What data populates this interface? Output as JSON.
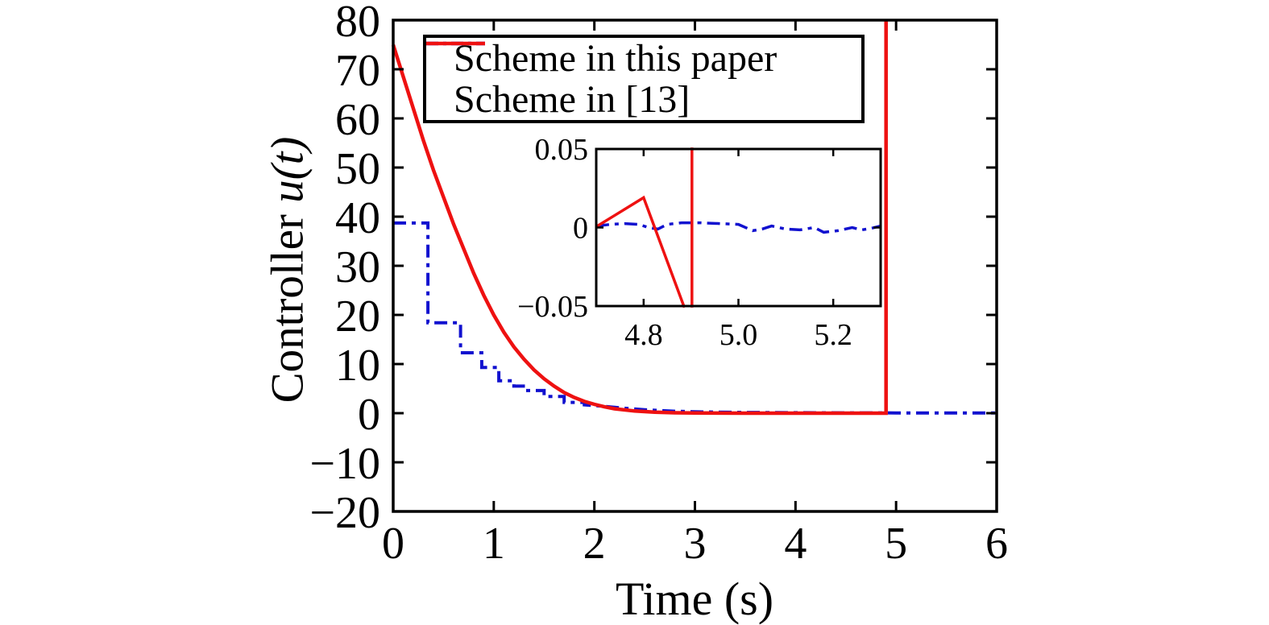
{
  "figure": {
    "background": "#ffffff",
    "axes_color": "#000000"
  },
  "chart_data": {
    "type": "line",
    "title": "",
    "xlabel": "Time (s)",
    "ylabel": "Controller u(t)",
    "ylabel_prefix": "Controller ",
    "ylabel_math": "u(t)",
    "xlim": [
      0,
      6
    ],
    "ylim": [
      -20,
      80
    ],
    "grid": false,
    "legend_position": "top-left-inside",
    "xticks": {
      "values": [
        0,
        1,
        2,
        3,
        4,
        5,
        6
      ],
      "labels": [
        "0",
        "1",
        "2",
        "3",
        "4",
        "5",
        "6"
      ]
    },
    "yticks": {
      "values": [
        -20,
        -10,
        0,
        10,
        20,
        30,
        40,
        50,
        60,
        70,
        80
      ],
      "labels": [
        "−20",
        "−10",
        "0",
        "10",
        "20",
        "30",
        "40",
        "50",
        "60",
        "70",
        "80"
      ]
    },
    "series": [
      {
        "name": "Scheme in this paper",
        "color": "#1111cf",
        "style": "dashdot",
        "width": 4,
        "segments": [
          [
            [
              0,
              38.7
            ],
            [
              0.345,
              38.7
            ],
            [
              0.345,
              18.4
            ],
            [
              0.67,
              18.4
            ],
            [
              0.67,
              12.3
            ],
            [
              0.88,
              12.3
            ],
            [
              0.88,
              9.3
            ],
            [
              1.05,
              9.3
            ],
            [
              1.05,
              6.6
            ],
            [
              1.2,
              6.6
            ],
            [
              1.2,
              5.5
            ],
            [
              1.32,
              5.5
            ],
            [
              1.32,
              4.6
            ],
            [
              1.5,
              4.6
            ],
            [
              1.5,
              3.4
            ],
            [
              1.7,
              3.4
            ],
            [
              1.7,
              2.2
            ],
            [
              1.9,
              2.2
            ],
            [
              1.9,
              1.7
            ],
            [
              2.1,
              1.4
            ],
            [
              2.3,
              1.0
            ],
            [
              2.5,
              0.7
            ],
            [
              2.8,
              0.4
            ],
            [
              3.1,
              0.25
            ],
            [
              3.5,
              0.15
            ],
            [
              4.0,
              0.1
            ],
            [
              4.5,
              0.07
            ],
            [
              5.0,
              0.05
            ],
            [
              5.5,
              0.05
            ],
            [
              6.0,
              0.05
            ]
          ]
        ]
      },
      {
        "name": "Scheme in [13]",
        "color": "#ee1111",
        "style": "solid",
        "width": 4.5,
        "segments": [
          [
            [
              0,
              75
            ],
            [
              0.1,
              68.5
            ],
            [
              0.2,
              62
            ],
            [
              0.3,
              55.5
            ],
            [
              0.4,
              49.5
            ],
            [
              0.5,
              44
            ],
            [
              0.6,
              38.5
            ],
            [
              0.7,
              33.5
            ],
            [
              0.8,
              28.5
            ],
            [
              0.9,
              24
            ],
            [
              1.0,
              20
            ],
            [
              1.1,
              16.5
            ],
            [
              1.2,
              13.5
            ],
            [
              1.3,
              11
            ],
            [
              1.4,
              8.8
            ],
            [
              1.5,
              7.0
            ],
            [
              1.6,
              5.5
            ],
            [
              1.7,
              4.2
            ],
            [
              1.8,
              3.2
            ],
            [
              1.9,
              2.4
            ],
            [
              2.0,
              1.8
            ],
            [
              2.1,
              1.3
            ],
            [
              2.2,
              0.9
            ],
            [
              2.4,
              0.45
            ],
            [
              2.6,
              0.2
            ],
            [
              2.8,
              0.08
            ],
            [
              3.0,
              0.03
            ],
            [
              3.5,
              0
            ],
            [
              4.0,
              0
            ],
            [
              4.5,
              0
            ],
            [
              4.88,
              0
            ],
            [
              4.9,
              0
            ],
            [
              4.9,
              80
            ]
          ]
        ]
      }
    ],
    "inset": {
      "xlim": [
        4.7,
        5.3
      ],
      "ylim": [
        -0.05,
        0.05
      ],
      "xticks": {
        "values": [
          4.8,
          5.0,
          5.2
        ],
        "labels": [
          "4.8",
          "5.0",
          "5.2"
        ]
      },
      "yticks": {
        "values": [
          -0.05,
          0,
          0.05
        ],
        "labels": [
          "−0.05",
          "0",
          "0.05"
        ]
      },
      "series": [
        {
          "name": "Scheme in this paper",
          "color": "#1111cf",
          "style": "dashdot",
          "width": 3.5,
          "segments": [
            [
              [
                4.7,
                0.001
              ],
              [
                4.73,
                0.002
              ],
              [
                4.76,
                0.0025
              ],
              [
                4.79,
                0.002
              ],
              [
                4.81,
                0.0
              ],
              [
                4.83,
                -0.001
              ],
              [
                4.85,
                0.002
              ],
              [
                4.88,
                0.003
              ],
              [
                4.92,
                0.003
              ],
              [
                4.96,
                0.0025
              ],
              [
                5.0,
                0.002
              ],
              [
                5.03,
                -0.002
              ],
              [
                5.05,
                -0.001
              ],
              [
                5.07,
                0.001
              ],
              [
                5.1,
                -0.001
              ],
              [
                5.13,
                -0.0015
              ],
              [
                5.16,
                0.0
              ],
              [
                5.18,
                -0.003
              ],
              [
                5.21,
                -0.002
              ],
              [
                5.24,
                0.0
              ],
              [
                5.26,
                -0.0015
              ],
              [
                5.28,
                -0.0005
              ],
              [
                5.3,
                0.001
              ]
            ]
          ]
        },
        {
          "name": "Scheme in [13]",
          "color": "#ee1111",
          "style": "solid",
          "width": 3.5,
          "segments": [
            [
              [
                4.7,
                0.0005
              ],
              [
                4.8,
                0.019
              ],
              [
                4.886,
                -0.051
              ]
            ],
            [
              [
                4.902,
                -0.051
              ],
              [
                4.902,
                0.051
              ]
            ]
          ]
        }
      ]
    }
  }
}
